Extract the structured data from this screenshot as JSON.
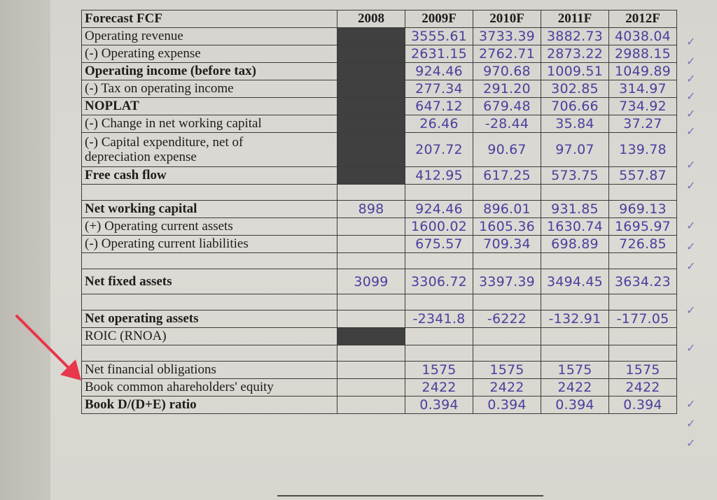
{
  "header": {
    "label": "Forecast FCF",
    "years": [
      "2008",
      "2009F",
      "2010F",
      "2011F",
      "2012F"
    ]
  },
  "rows": [
    {
      "label": "Operating revenue",
      "bold": false,
      "values": [
        "",
        "3555.61",
        "3733.39",
        "3882.73",
        "4038.04"
      ]
    },
    {
      "label": "(-) Operating expense",
      "bold": false,
      "values": [
        "",
        "2631.15",
        "2762.71",
        "2873.22",
        "2988.15"
      ]
    },
    {
      "label": "Operating income (before tax)",
      "bold": true,
      "values": [
        "",
        "924.46",
        "970.68",
        "1009.51",
        "1049.89"
      ]
    },
    {
      "label": "(-) Tax on operating income",
      "bold": false,
      "values": [
        "",
        "277.34",
        "291.20",
        "302.85",
        "314.97"
      ]
    },
    {
      "label": "NOPLAT",
      "bold": true,
      "values": [
        "",
        "647.12",
        "679.48",
        "706.66",
        "734.92"
      ]
    },
    {
      "label": "(-) Change in net working capital",
      "bold": false,
      "values": [
        "",
        "26.46",
        "-28.44",
        "35.84",
        "37.27"
      ]
    },
    {
      "label1": "(-) Capital expenditure, net of",
      "label2": "depreciation expense",
      "bold": false,
      "values": [
        "",
        "207.72",
        "90.67",
        "97.07",
        "139.78"
      ]
    },
    {
      "label": "Free cash flow",
      "bold": true,
      "values": [
        "",
        "412.95",
        "617.25",
        "573.75",
        "557.87"
      ]
    },
    {
      "label": "Net working capital",
      "bold": true,
      "values": [
        "898",
        "924.46",
        "896.01",
        "931.85",
        "969.13"
      ]
    },
    {
      "label": "(+) Operating current assets",
      "bold": false,
      "values": [
        "",
        "1600.02",
        "1605.36",
        "1630.74",
        "1695.97"
      ]
    },
    {
      "label": "(-) Operating current liabilities",
      "bold": false,
      "values": [
        "",
        "675.57",
        "709.34",
        "698.89",
        "726.85"
      ]
    },
    {
      "label": "Net fixed assets",
      "bold": true,
      "values": [
        "3099",
        "3306.72",
        "3397.39",
        "3494.45",
        "3634.23"
      ]
    },
    {
      "label": "Net operating assets",
      "bold": true,
      "values": [
        "",
        "-2341.8",
        "-6222",
        "-132.91",
        "-177.05"
      ]
    },
    {
      "label": "ROIC (RNOA)",
      "bold": false,
      "values": [
        "",
        "",
        "",
        "",
        ""
      ]
    },
    {
      "label": "Net financial obligations",
      "bold": false,
      "values": [
        "",
        "1575",
        "1575",
        "1575",
        "1575"
      ]
    },
    {
      "label": "Book common ahareholders' equity",
      "bold": false,
      "values": [
        "",
        "2422",
        "2422",
        "2422",
        "2422"
      ]
    },
    {
      "label": "Book D/(D+E) ratio",
      "bold": true,
      "values": [
        "",
        "0.394",
        "0.394",
        "0.394",
        "0.394"
      ]
    }
  ],
  "check_mark": "✓",
  "annotation": {
    "arrow_color": "#e8364a",
    "icon": "red-arrow-icon"
  },
  "ink_color": "#4b3f9e"
}
